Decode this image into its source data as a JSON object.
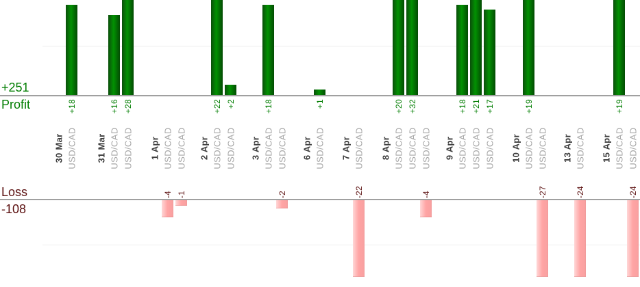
{
  "chart_data": {
    "type": "bar",
    "title": "",
    "description": "Daily trading profit/loss bar chart, profits plotted upward above an axis and losses plotted downward below a second axis, grouped by date with one bar per trade",
    "profit_axis": {
      "total_label": "+251",
      "axis_label": "Profit"
    },
    "loss_axis": {
      "axis_label": "Loss",
      "total_label": "-108"
    },
    "legend_position": "none",
    "grid": "faint horizontal gridlines",
    "groups": [
      {
        "date": "30 Mar",
        "trades": [
          {
            "symbol": "USD/CAD",
            "value": 18,
            "label": "+18"
          }
        ]
      },
      {
        "date": "31 Mar",
        "trades": [
          {
            "symbol": "USD/CAD",
            "value": 16,
            "label": "+16"
          },
          {
            "symbol": "USD/CAD",
            "value": 28,
            "label": "+28"
          }
        ]
      },
      {
        "date": "1 Apr",
        "trades": [
          {
            "symbol": "USD/CAD",
            "value": -4,
            "label": "-4"
          },
          {
            "symbol": "USD/CAD",
            "value": -1,
            "label": "-1"
          }
        ]
      },
      {
        "date": "2 Apr",
        "trades": [
          {
            "symbol": "USD/CAD",
            "value": 22,
            "label": "+22"
          },
          {
            "symbol": "USD/CAD",
            "value": 2,
            "label": "+2"
          }
        ]
      },
      {
        "date": "3 Apr",
        "trades": [
          {
            "symbol": "USD/CAD",
            "value": 18,
            "label": "+18"
          },
          {
            "symbol": "USD/CAD",
            "value": -2,
            "label": "-2"
          }
        ]
      },
      {
        "date": "6 Apr",
        "trades": [
          {
            "symbol": "USD/CAD",
            "value": 1,
            "label": "+1"
          }
        ]
      },
      {
        "date": "7 Apr",
        "trades": [
          {
            "symbol": "USD/CAD",
            "value": -22,
            "label": "-22"
          }
        ]
      },
      {
        "date": "8 Apr",
        "trades": [
          {
            "symbol": "USD/CAD",
            "value": 20,
            "label": "+20"
          },
          {
            "symbol": "USD/CAD",
            "value": 32,
            "label": "+32"
          },
          {
            "symbol": "USD/CAD",
            "value": -4,
            "label": "-4"
          }
        ]
      },
      {
        "date": "9 Apr",
        "trades": [
          {
            "symbol": "USD/CAD",
            "value": 18,
            "label": "+18"
          },
          {
            "symbol": "USD/CAD",
            "value": 21,
            "label": "+21"
          },
          {
            "symbol": "USD/CAD",
            "value": 17,
            "label": "+17"
          }
        ]
      },
      {
        "date": "10 Apr",
        "trades": [
          {
            "symbol": "USD/CAD",
            "value": 19,
            "label": "+19"
          },
          {
            "symbol": "USD/CAD",
            "value": -27,
            "label": "-27"
          }
        ]
      },
      {
        "date": "13 Apr",
        "trades": [
          {
            "symbol": "USD/CAD",
            "value": -24,
            "label": "-24"
          }
        ]
      },
      {
        "date": "15 Apr",
        "trades": [
          {
            "symbol": "USD/CAD",
            "value": 19,
            "label": "+19"
          },
          {
            "symbol": "USD/CAD",
            "value": -24,
            "label": "-24"
          }
        ]
      }
    ],
    "colors": {
      "profit_bar_gradient": [
        "#0b4f0b",
        "#029102",
        "#034b03"
      ],
      "loss_bar_gradient": [
        "#ffd7d7",
        "#ffa4a4",
        "#f8a0a0"
      ],
      "profit_text": "#007d00",
      "loss_text": "#5c1111",
      "date_text": "#3c3c3c",
      "symbol_text": "#a6a6a6",
      "axis_line": "#a0a0a0",
      "gridline": "#ededed"
    }
  }
}
